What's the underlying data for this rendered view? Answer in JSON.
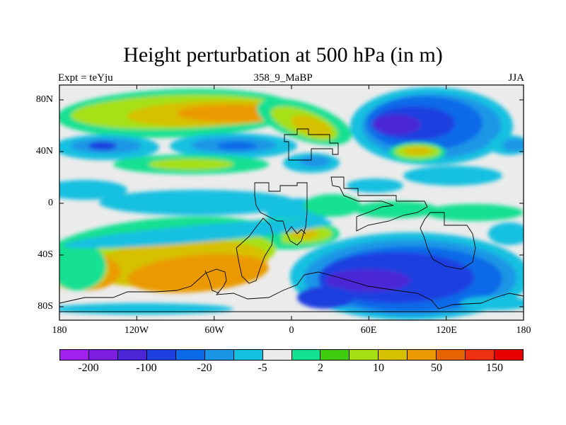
{
  "title": "Height perturbation at 500 hPa (in m)",
  "subtitle_left": "Expt = teYju",
  "subtitle_center": "358_9_MaBP",
  "subtitle_right": "JJA",
  "y_axis_labels": [
    "80N",
    "40N",
    "0",
    "40S",
    "80S"
  ],
  "x_axis_labels": [
    "180",
    "120W",
    "60W",
    "0",
    "60E",
    "120E",
    "180"
  ],
  "colorbar": {
    "colors": [
      "#a020f0",
      "#7c1de0",
      "#4b25d6",
      "#1f3fe0",
      "#0a6ae8",
      "#1a96e6",
      "#12c0e0",
      "#ebebeb",
      "#12e092",
      "#3fcc10",
      "#a6e014",
      "#d6c000",
      "#ea9a00",
      "#e66400",
      "#ee3010",
      "#e80000"
    ],
    "labels": [
      "-200",
      "-100",
      "-20",
      "-5",
      "2",
      "10",
      "50",
      "150"
    ]
  },
  "map_colors": {
    "ocean_neutral": "#ebebeb",
    "pos_weak": "#12e092",
    "pos_mid": "#a6e014",
    "pos_high": "#d6c000",
    "pos_strong": "#ea9a00",
    "neg_weak": "#12c0e0",
    "neg_mid": "#1a96e6",
    "neg_high": "#0a6ae8",
    "neg_strong": "#1f3fe0",
    "neg_deep": "#4b25d6"
  }
}
